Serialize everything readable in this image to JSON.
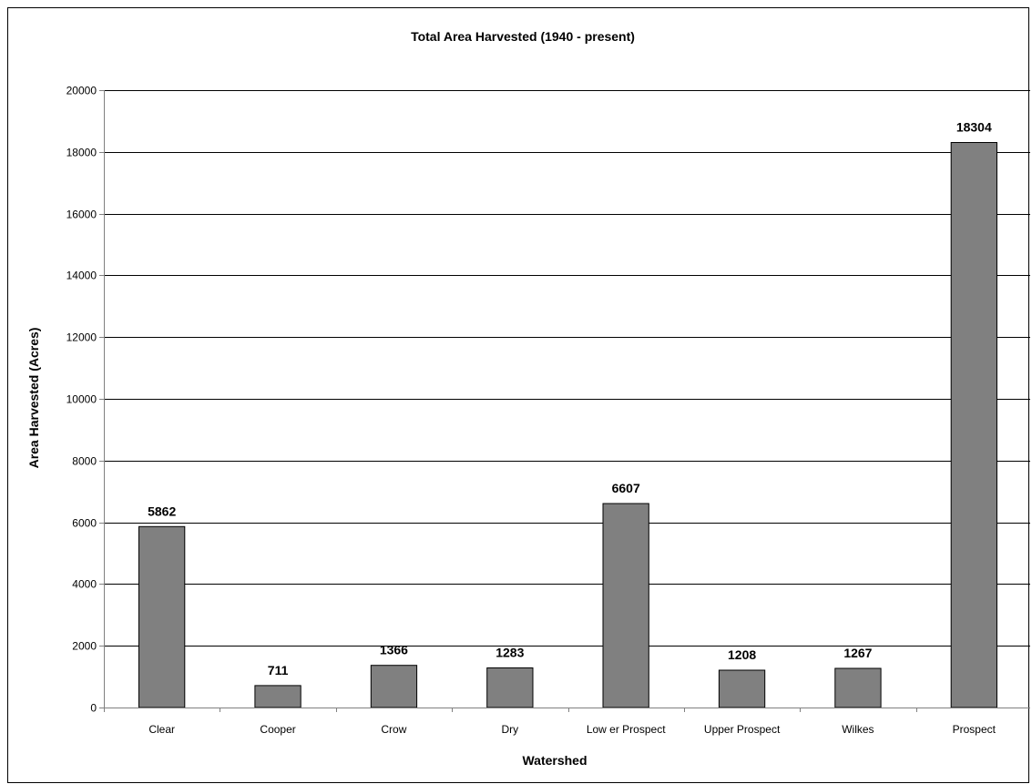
{
  "chart_data": {
    "type": "bar",
    "title": "Total Area Harvested (1940 - present)",
    "xlabel": "Watershed",
    "ylabel": "Area Harvested (Acres)",
    "categories": [
      "Clear",
      "Cooper",
      "Crow",
      "Dry",
      "Low er Prospect",
      "Upper Prospect",
      "Wilkes",
      "Prospect"
    ],
    "values": [
      5862,
      711,
      1366,
      1283,
      6607,
      1208,
      1267,
      18304
    ],
    "ylim": [
      0,
      20000
    ],
    "yticks": [
      0,
      2000,
      4000,
      6000,
      8000,
      10000,
      12000,
      14000,
      16000,
      18000,
      20000
    ],
    "grid": true,
    "legend": "none",
    "colors": {
      "bar_fill": "#808080",
      "bar_stroke": "#000000",
      "gridline": "#000000",
      "axis": "#808080",
      "background": "#ffffff"
    }
  }
}
